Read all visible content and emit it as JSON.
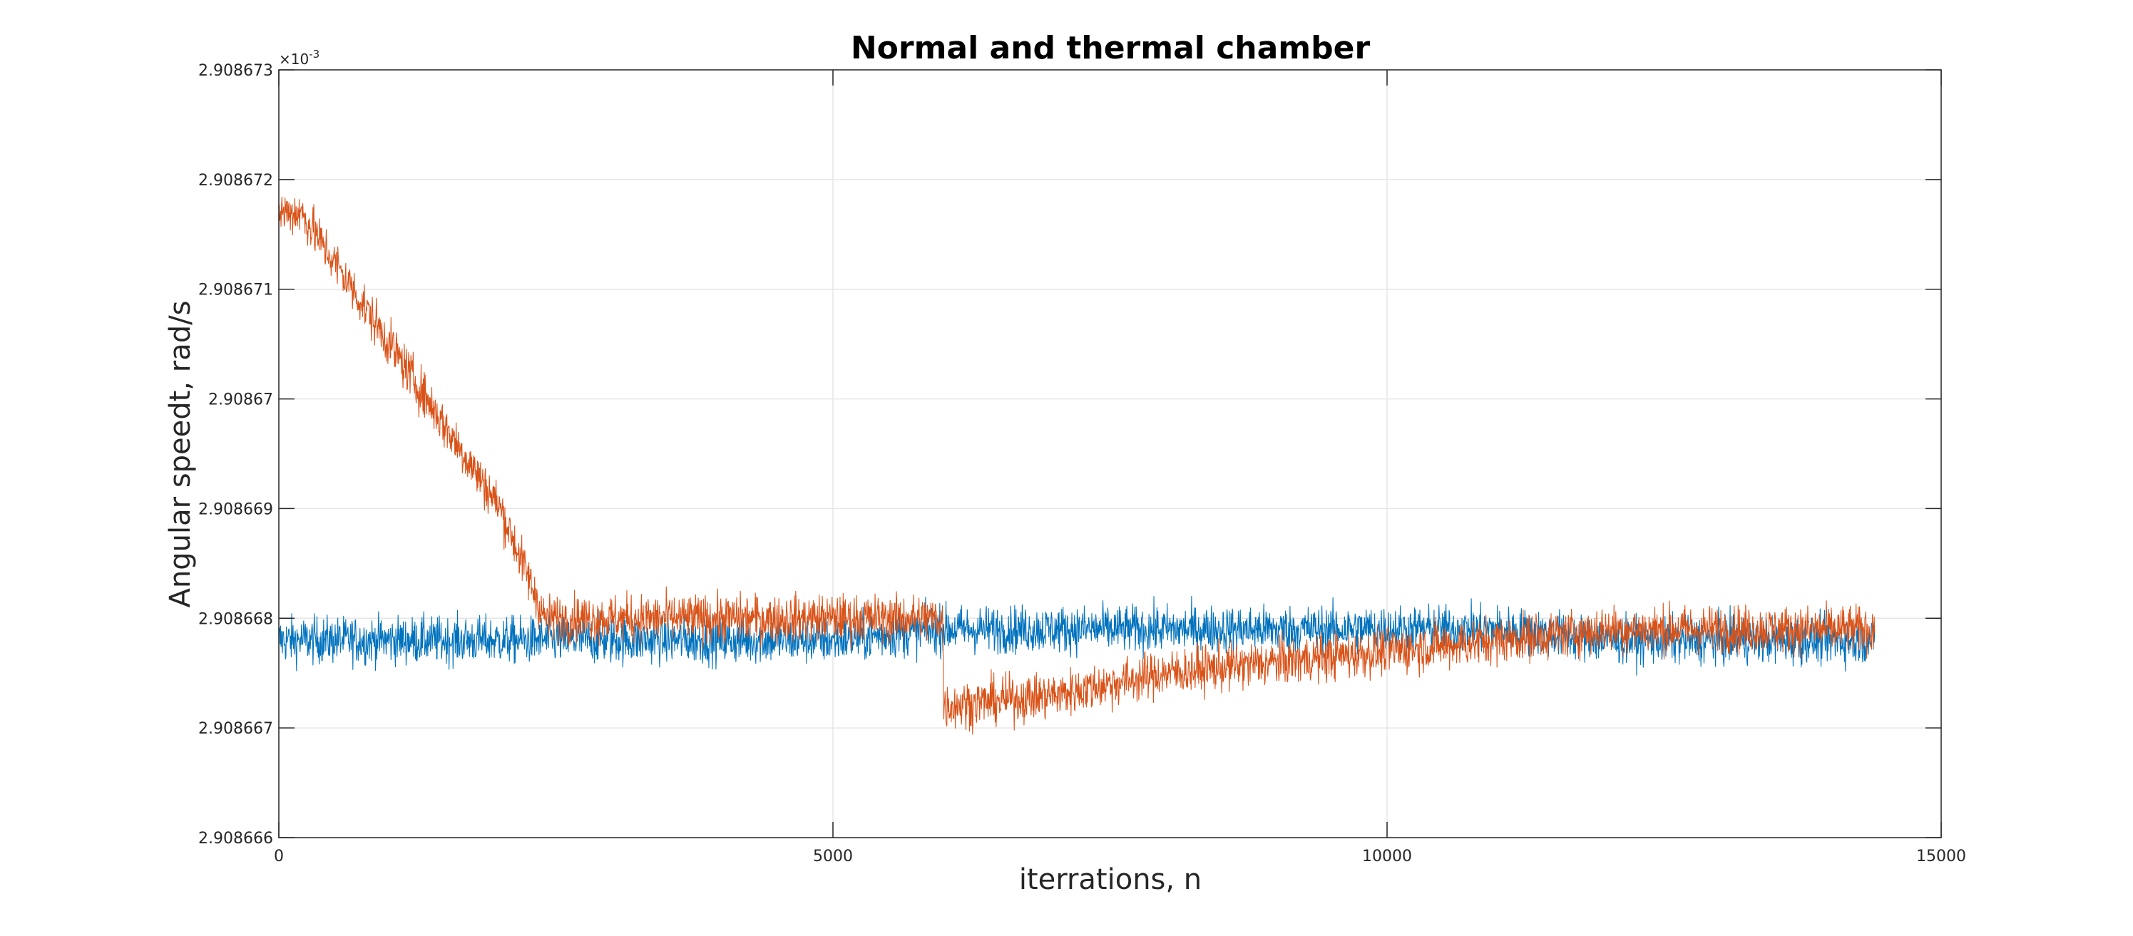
{
  "chart_data": {
    "type": "line",
    "title": "Normal and thermal chamber",
    "xlabel": "iterrations, n",
    "ylabel": "Angular speedt, rad/s",
    "xlim": [
      0,
      15000
    ],
    "ylim": [
      2.908666,
      2.908673
    ],
    "xticks": [
      0,
      5000,
      10000,
      15000
    ],
    "xtick_labels": [
      "0",
      "5000",
      "10000",
      "15000"
    ],
    "yticks": [
      2.908666,
      2.908667,
      2.908668,
      2.908669,
      2.90867,
      2.908671,
      2.908672,
      2.908673
    ],
    "ytick_labels": [
      "2.908666",
      "2.908667",
      "2.908668",
      "2.908669",
      "2.90867",
      "2.908671",
      "2.908672",
      "2.908673"
    ],
    "y_exponent_label": "×10",
    "y_exponent_power": "-3",
    "grid": true,
    "legend": "none",
    "series": [
      {
        "color": "#0072BD",
        "noise_band": 3e-07,
        "x": [
          0,
          1000,
          2000,
          3000,
          4000,
          5000,
          6000,
          7000,
          8000,
          9000,
          10000,
          11000,
          12000,
          13000,
          14000,
          14400
        ],
        "values": [
          2.9086678,
          2.9086678,
          2.9086678,
          2.9086678,
          2.9086678,
          2.9086678,
          2.9086679,
          2.9086679,
          2.9086679,
          2.9086679,
          2.9086679,
          2.9086679,
          2.9086678,
          2.9086678,
          2.9086678,
          2.9086678
        ]
      },
      {
        "color": "#D95319",
        "noise_band": 3e-07,
        "x": [
          0,
          200,
          1000,
          2000,
          2400,
          3000,
          4000,
          5000,
          5990,
          6000,
          7000,
          8000,
          9000,
          10000,
          11000,
          12000,
          13000,
          14000,
          14400
        ],
        "values": [
          2.9086717,
          2.9086717,
          2.9086705,
          2.908669,
          2.908668,
          2.908668,
          2.908668,
          2.908668,
          2.908668,
          2.9086672,
          2.9086673,
          2.9086675,
          2.9086676,
          2.9086677,
          2.9086678,
          2.9086679,
          2.9086679,
          2.9086679,
          2.9086679
        ]
      }
    ]
  }
}
